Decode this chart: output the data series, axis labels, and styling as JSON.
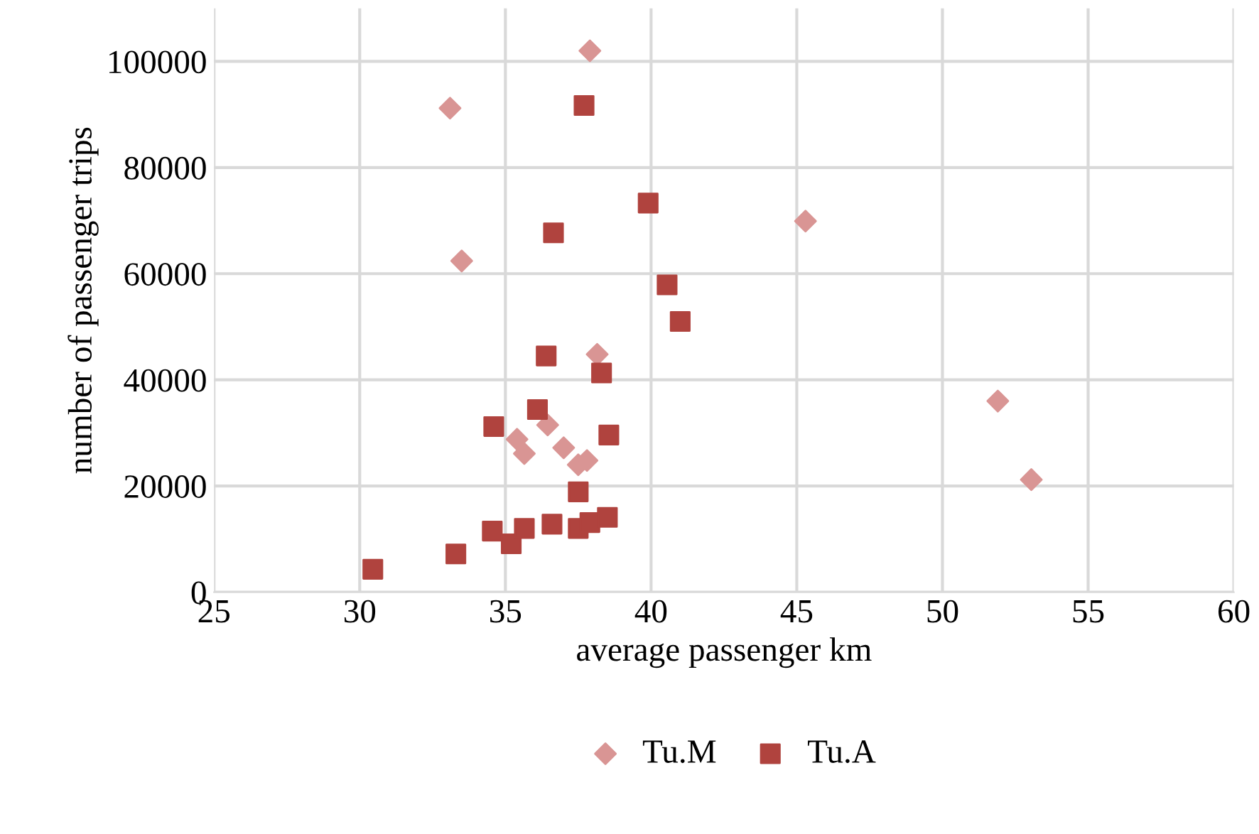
{
  "chart_data": {
    "type": "scatter",
    "xlabel": "average passenger km",
    "ylabel": "number of passenger trips",
    "series": [
      {
        "name": "Tu.M",
        "color": "#d99594",
        "marker": "diamond",
        "x": [
          33.1,
          37.9,
          33.5,
          45.3,
          38.15,
          36.45,
          35.4,
          35.65,
          37.0,
          37.5,
          37.8,
          51.9,
          53.05
        ],
        "values": [
          91200,
          102000,
          62400,
          69900,
          44800,
          31500,
          28800,
          26100,
          27200,
          24000,
          24800,
          36000,
          21200
        ]
      },
      {
        "name": "Tu.A",
        "color": "#b0433e",
        "marker": "square",
        "x": [
          37.7,
          39.9,
          36.65,
          40.55,
          41.0,
          36.4,
          38.3,
          36.1,
          34.6,
          38.55,
          37.5,
          33.3,
          30.45,
          34.55,
          35.2,
          35.65,
          36.6,
          37.5,
          37.9,
          38.5
        ],
        "values": [
          91700,
          73300,
          67700,
          57900,
          51000,
          44500,
          41300,
          34400,
          31200,
          29600,
          18900,
          7200,
          4300,
          11500,
          9100,
          12000,
          12800,
          12000,
          13100,
          14100
        ]
      }
    ],
    "xlim": [
      25,
      60
    ],
    "xticks": [
      25,
      30,
      35,
      40,
      45,
      50,
      55,
      60
    ],
    "ylim": [
      0,
      110000
    ],
    "yticks": [
      0,
      20000,
      40000,
      60000,
      80000,
      100000
    ],
    "grid": true,
    "legend": "bottom"
  }
}
